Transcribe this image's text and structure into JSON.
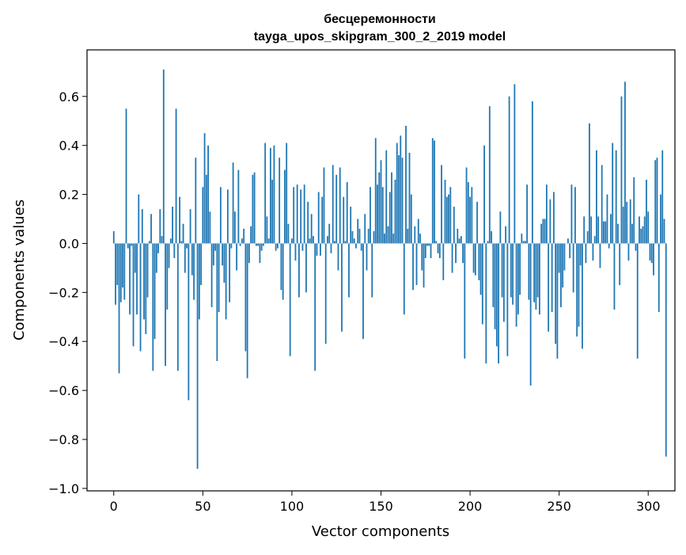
{
  "chart_data": {
    "type": "bar",
    "title_line1": "бесцеремонности",
    "title_line2": "tayga_upos_skipgram_300_2_2019 model",
    "xlabel": "Vector components",
    "ylabel": "Components values",
    "xlim": [
      -15,
      315
    ],
    "ylim": [
      -1.01,
      0.79
    ],
    "xticks": [
      0,
      50,
      100,
      150,
      200,
      250,
      300
    ],
    "xtick_labels": [
      "0",
      "50",
      "100",
      "150",
      "200",
      "250",
      "300"
    ],
    "yticks": [
      -1.0,
      -0.8,
      -0.6,
      -0.4,
      -0.2,
      0.0,
      0.2,
      0.4,
      0.6
    ],
    "ytick_labels": [
      "−1.0",
      "−0.8",
      "−0.6",
      "−0.4",
      "−0.2",
      "0.0",
      "0.2",
      "0.4",
      "0.6"
    ],
    "bar_color": "#1f77b4",
    "values": [
      0.05,
      -0.25,
      -0.17,
      -0.53,
      -0.24,
      -0.18,
      -0.23,
      0.55,
      -0.02,
      -0.29,
      -0.01,
      -0.42,
      -0.12,
      -0.29,
      0.2,
      -0.44,
      0.14,
      -0.31,
      -0.37,
      -0.22,
      0.01,
      0.12,
      -0.52,
      -0.39,
      -0.12,
      -0.04,
      0.14,
      0.03,
      0.71,
      -0.5,
      -0.27,
      -0.1,
      0.02,
      0.15,
      -0.06,
      0.55,
      -0.52,
      0.19,
      0.01,
      0.08,
      -0.12,
      -0.02,
      -0.64,
      0.14,
      -0.13,
      -0.23,
      0.35,
      -0.92,
      -0.31,
      -0.17,
      0.23,
      0.45,
      0.28,
      0.4,
      0.13,
      -0.26,
      -0.09,
      -0.03,
      -0.48,
      -0.28,
      0.23,
      -0.09,
      -0.16,
      -0.31,
      0.22,
      -0.24,
      -0.02,
      0.33,
      0.13,
      -0.11,
      0.3,
      -0.01,
      0.02,
      0.06,
      -0.44,
      -0.55,
      -0.08,
      0.07,
      0.28,
      0.29,
      -0.01,
      -0.01,
      -0.08,
      -0.03,
      -0.01,
      0.41,
      0.11,
      0.02,
      0.39,
      0.26,
      0.4,
      -0.03,
      -0.02,
      0.35,
      -0.19,
      -0.23,
      0.3,
      0.41,
      0.08,
      -0.46,
      0.02,
      0.23,
      -0.07,
      0.24,
      -0.22,
      0.22,
      -0.03,
      0.24,
      -0.2,
      0.17,
      0.02,
      0.12,
      0.03,
      -0.52,
      -0.05,
      0.21,
      -0.05,
      0.19,
      0.31,
      -0.41,
      0.03,
      0.08,
      -0.04,
      0.32,
      0.01,
      0.28,
      -0.11,
      0.31,
      -0.36,
      0.19,
      0.01,
      0.25,
      -0.22,
      0.15,
      0.05,
      0.02,
      -0.02,
      0.1,
      0.06,
      -0.03,
      -0.39,
      0.12,
      -0.11,
      0.06,
      0.23,
      -0.22,
      0.05,
      0.43,
      0.24,
      0.29,
      0.34,
      0.23,
      0.04,
      0.38,
      0.07,
      0.21,
      0.29,
      0.04,
      0.26,
      0.41,
      0.36,
      0.44,
      0.35,
      -0.29,
      0.48,
      0.06,
      0.37,
      0.2,
      -0.19,
      0.07,
      -0.17,
      0.1,
      0.04,
      -0.11,
      -0.18,
      -0.06,
      -0.01,
      -0.01,
      -0.06,
      0.43,
      0.42,
      0.01,
      -0.04,
      -0.06,
      0.32,
      -0.15,
      0.26,
      0.19,
      0.2,
      0.23,
      -0.12,
      0.15,
      -0.08,
      0.06,
      0.02,
      0.03,
      -0.08,
      -0.47,
      0.31,
      0.25,
      0.19,
      0.23,
      -0.12,
      -0.13,
      0.17,
      -0.15,
      -0.21,
      -0.33,
      0.4,
      -0.49,
      0.01,
      0.56,
      0.05,
      -0.26,
      -0.35,
      -0.42,
      -0.49,
      0.13,
      -0.22,
      -0.32,
      0.07,
      -0.46,
      0.6,
      -0.22,
      -0.25,
      0.65,
      -0.34,
      -0.29,
      -0.21,
      0.04,
      0.01,
      0.01,
      0.24,
      -0.23,
      -0.58,
      0.58,
      -0.24,
      -0.27,
      -0.22,
      -0.29,
      0.08,
      0.1,
      0.1,
      0.24,
      -0.36,
      0.18,
      -0.28,
      0.21,
      -0.41,
      -0.47,
      -0.12,
      -0.26,
      -0.18,
      -0.11,
      0.0,
      0.02,
      -0.06,
      0.24,
      -0.2,
      0.23,
      -0.38,
      -0.34,
      -0.09,
      -0.43,
      0.11,
      -0.08,
      0.05,
      0.49,
      0.11,
      -0.07,
      0.03,
      0.38,
      0.11,
      -0.1,
      0.32,
      0.09,
      0.09,
      0.2,
      -0.02,
      0.12,
      0.41,
      -0.27,
      0.38,
      0.08,
      -0.17,
      0.6,
      0.15,
      0.66,
      0.17,
      -0.07,
      0.18,
      0.08,
      0.27,
      -0.03,
      -0.47,
      0.11,
      0.06,
      0.07,
      0.11,
      0.26,
      0.13,
      -0.07,
      -0.08,
      -0.13,
      0.34,
      0.35,
      -0.28,
      0.2,
      0.38,
      0.1,
      -0.87
    ]
  }
}
